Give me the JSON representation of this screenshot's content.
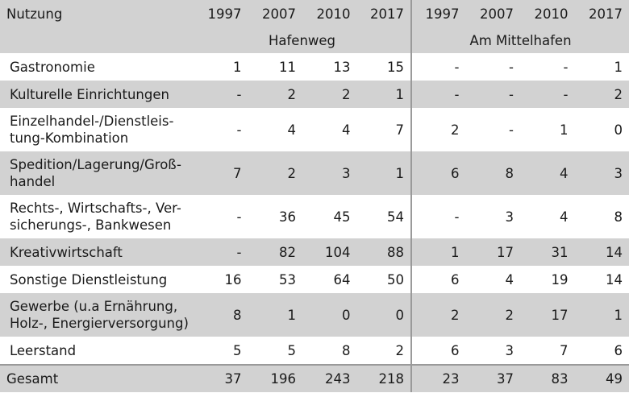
{
  "header": {
    "usage_label": "Nutzung",
    "years": [
      "1997",
      "2007",
      "2010",
      "2017"
    ],
    "groups": [
      "Hafenweg",
      "Am Mittelhafen"
    ]
  },
  "rows": [
    {
      "label": "Gastronomie",
      "hafenweg": [
        "1",
        "11",
        "13",
        "15"
      ],
      "mittelhafen": [
        "-",
        "-",
        "-",
        "1"
      ]
    },
    {
      "label": "Kulturelle Einrichtungen",
      "hafenweg": [
        "-",
        "2",
        "2",
        "1"
      ],
      "mittelhafen": [
        "-",
        "-",
        "-",
        "2"
      ]
    },
    {
      "label_lines": [
        "Einzelhandel-/Dienstleis-",
        "tung-Kombination"
      ],
      "hafenweg": [
        "-",
        "4",
        "4",
        "7"
      ],
      "mittelhafen": [
        "2",
        "-",
        "1",
        "0"
      ]
    },
    {
      "label_lines": [
        "Spedition/Lagerung/Groß-",
        "handel"
      ],
      "hafenweg": [
        "7",
        "2",
        "3",
        "1"
      ],
      "mittelhafen": [
        "6",
        "8",
        "4",
        "3"
      ]
    },
    {
      "label_lines": [
        "Rechts-, Wirtschafts-, Ver-",
        "sicherungs-, Bankwesen"
      ],
      "hafenweg": [
        "-",
        "36",
        "45",
        "54"
      ],
      "mittelhafen": [
        "-",
        "3",
        "4",
        "8"
      ]
    },
    {
      "label": "Kreativwirtschaft",
      "hafenweg": [
        "-",
        "82",
        "104",
        "88"
      ],
      "mittelhafen": [
        "1",
        "17",
        "31",
        "14"
      ]
    },
    {
      "label": "Sonstige Dienstleistung",
      "hafenweg": [
        "16",
        "53",
        "64",
        "50"
      ],
      "mittelhafen": [
        "6",
        "4",
        "19",
        "14"
      ]
    },
    {
      "label_lines": [
        "Gewerbe (u.a Ernährung,",
        "Holz-, Energierversorgung)"
      ],
      "hafenweg": [
        "8",
        "1",
        "0",
        "0"
      ],
      "mittelhafen": [
        "2",
        "2",
        "17",
        "1"
      ]
    },
    {
      "label": "Leerstand",
      "hafenweg": [
        "5",
        "5",
        "8",
        "2"
      ],
      "mittelhafen": [
        "6",
        "3",
        "7",
        "6"
      ]
    }
  ],
  "total": {
    "label": "Gesamt",
    "hafenweg": [
      "37",
      "196",
      "243",
      "218"
    ],
    "mittelhafen": [
      "23",
      "37",
      "83",
      "49"
    ]
  }
}
